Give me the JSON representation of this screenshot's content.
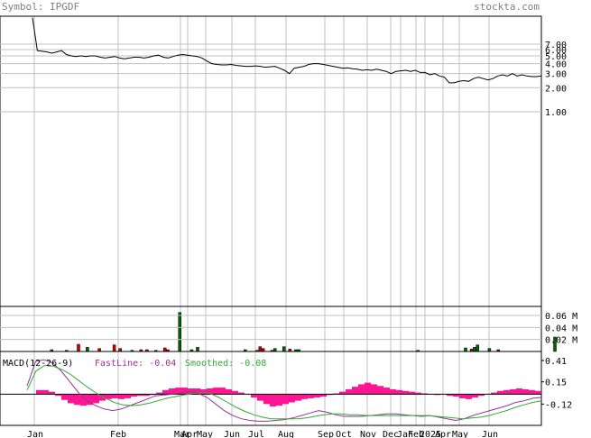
{
  "header": {
    "symbol_label": "Symbol: IPGDF",
    "site": "stockta.com"
  },
  "colors": {
    "frame": "#000000",
    "grid": "#c0c0c0",
    "price_line": "#000000",
    "vol_up": "#006400",
    "vol_down": "#cc0000",
    "macd_hist": "#ff1493",
    "fast_line": "#993399",
    "smoothed_line": "#33aa33",
    "label_gray": "#808080"
  },
  "x_axis": {
    "month_labels": [
      "Jan",
      "Feb",
      "Mar",
      "Apr",
      "May",
      "Jun",
      "Jul",
      "Aug",
      "Sep",
      "Oct",
      "Nov",
      "Dec",
      "Jan",
      "Feb",
      "2025",
      "Apr",
      "May",
      "Jun"
    ]
  },
  "chart_data": [
    {
      "type": "line",
      "title": "",
      "y_scale": "log",
      "y_tick_labels": [
        "7.00",
        "6.00",
        "5.00",
        "4.00",
        "3.00",
        "2.00",
        "1.00"
      ],
      "y_ticks": [
        7,
        6,
        5,
        4,
        3,
        2,
        1
      ],
      "ylim": [
        0,
        15
      ],
      "series": [
        {
          "values": [
            15,
            5.8,
            5.7,
            5.6,
            5.4,
            5.6,
            5.8,
            5.2,
            5.0,
            4.9,
            5.0,
            4.9,
            5.0,
            5.0,
            4.8,
            4.7,
            4.8,
            4.9,
            4.7,
            4.6,
            4.7,
            4.8,
            4.8,
            4.7,
            4.8,
            5.0,
            5.1,
            4.8,
            4.7,
            4.9,
            5.1,
            5.2,
            5.1,
            5.0,
            4.9,
            4.7,
            4.3,
            4.0,
            3.9,
            3.85,
            3.85,
            3.9,
            3.8,
            3.75,
            3.7,
            3.7,
            3.75,
            3.7,
            3.6,
            3.65,
            3.7,
            3.5,
            3.3,
            3.0,
            3.5,
            3.6,
            3.7,
            3.9,
            4.0,
            4.0,
            3.9,
            3.8,
            3.7,
            3.6,
            3.5,
            3.55,
            3.45,
            3.4,
            3.3,
            3.35,
            3.3,
            3.4,
            3.3,
            3.2,
            3.0,
            3.2,
            3.25,
            3.3,
            3.2,
            3.3,
            3.1,
            3.1,
            2.9,
            3.0,
            2.8,
            2.7,
            2.3,
            2.3,
            2.4,
            2.45,
            2.4,
            2.6,
            2.7,
            2.6,
            2.5,
            2.6,
            2.8,
            2.9,
            2.8,
            3.0,
            2.8,
            2.9,
            2.8,
            2.75,
            2.75,
            2.8
          ]
        }
      ]
    },
    {
      "type": "bar",
      "title": "",
      "unit": "M",
      "y_tick_labels": [
        "0.06 M",
        "0.04 M",
        "0.02 M"
      ],
      "y_ticks": [
        0.06,
        0.04,
        0.02
      ],
      "ylim": [
        0,
        0.075
      ],
      "bars": [
        {
          "x": 6,
          "value": 0.003,
          "dir": "up"
        },
        {
          "x": 11,
          "value": 0.002,
          "dir": "down"
        },
        {
          "x": 15,
          "value": 0.012,
          "dir": "down"
        },
        {
          "x": 18,
          "value": 0.007,
          "dir": "up"
        },
        {
          "x": 22,
          "value": 0.005,
          "dir": "down"
        },
        {
          "x": 27,
          "value": 0.011,
          "dir": "down"
        },
        {
          "x": 29,
          "value": 0.005,
          "dir": "down"
        },
        {
          "x": 33,
          "value": 0.002,
          "dir": "up"
        },
        {
          "x": 36,
          "value": 0.003,
          "dir": "down"
        },
        {
          "x": 38,
          "value": 0.003,
          "dir": "down"
        },
        {
          "x": 41,
          "value": 0.002,
          "dir": "up"
        },
        {
          "x": 44,
          "value": 0.006,
          "dir": "down"
        },
        {
          "x": 45,
          "value": 0.003,
          "dir": "down"
        },
        {
          "x": 49,
          "value": 0.065,
          "dir": "up"
        },
        {
          "x": 53,
          "value": 0.003,
          "dir": "up"
        },
        {
          "x": 55,
          "value": 0.007,
          "dir": "up"
        },
        {
          "x": 71,
          "value": 0.003,
          "dir": "up"
        },
        {
          "x": 75,
          "value": 0.002,
          "dir": "down"
        },
        {
          "x": 76,
          "value": 0.008,
          "dir": "down"
        },
        {
          "x": 77,
          "value": 0.005,
          "dir": "down"
        },
        {
          "x": 80,
          "value": 0.002,
          "dir": "up"
        },
        {
          "x": 81,
          "value": 0.005,
          "dir": "up"
        },
        {
          "x": 84,
          "value": 0.008,
          "dir": "up"
        },
        {
          "x": 86,
          "value": 0.004,
          "dir": "down"
        },
        {
          "x": 88,
          "value": 0.003,
          "dir": "up"
        },
        {
          "x": 89,
          "value": 0.003,
          "dir": "up"
        },
        {
          "x": 129,
          "value": 0.002,
          "dir": "up"
        },
        {
          "x": 145,
          "value": 0.006,
          "dir": "up"
        },
        {
          "x": 147,
          "value": 0.004,
          "dir": "down"
        },
        {
          "x": 148,
          "value": 0.007,
          "dir": "up"
        },
        {
          "x": 149,
          "value": 0.011,
          "dir": "up"
        },
        {
          "x": 153,
          "value": 0.005,
          "dir": "up"
        },
        {
          "x": 156,
          "value": 0.003,
          "dir": "down"
        },
        {
          "x": 175,
          "value": 0.024,
          "dir": "up"
        }
      ]
    },
    {
      "type": "line",
      "title": "MACD(12-26-9)",
      "fast_label": "FastLine: -0.04",
      "smoothed_label": "Smoothed: -0.08",
      "y_tick_labels": [
        "0.41",
        "0.15",
        "-0.12"
      ],
      "y_ticks": [
        0.41,
        0.15,
        -0.12
      ],
      "zero_line": 0,
      "ylim": [
        -0.38,
        0.52
      ],
      "histogram": [
        0.05,
        0.05,
        0.03,
        -0.02,
        -0.07,
        -0.11,
        -0.13,
        -0.14,
        -0.13,
        -0.11,
        -0.08,
        -0.06,
        -0.05,
        -0.06,
        -0.05,
        -0.03,
        -0.02,
        -0.02,
        -0.01,
        0.02,
        0.05,
        0.07,
        0.08,
        0.08,
        0.07,
        0.07,
        0.06,
        0.07,
        0.08,
        0.08,
        0.06,
        0.04,
        0.02,
        0.0,
        -0.04,
        -0.08,
        -0.12,
        -0.15,
        -0.14,
        -0.12,
        -0.1,
        -0.08,
        -0.06,
        -0.05,
        -0.04,
        -0.03,
        -0.01,
        0.01,
        0.03,
        0.06,
        0.09,
        0.12,
        0.14,
        0.12,
        0.1,
        0.08,
        0.06,
        0.05,
        0.04,
        0.03,
        0.02,
        0.01,
        0.0,
        -0.01,
        0.0,
        -0.02,
        -0.03,
        -0.05,
        -0.06,
        -0.04,
        -0.02,
        0.0,
        0.02,
        0.04,
        0.05,
        0.06,
        0.07,
        0.06,
        0.05,
        0.04
      ],
      "fast_line": [
        0.1,
        0.4,
        0.42,
        0.38,
        0.28,
        0.15,
        0.02,
        -0.08,
        -0.14,
        -0.18,
        -0.2,
        -0.18,
        -0.14,
        -0.1,
        -0.06,
        -0.02,
        -0.01,
        0.0,
        0.02,
        0.03,
        0.01,
        -0.04,
        -0.12,
        -0.2,
        -0.26,
        -0.3,
        -0.32,
        -0.33,
        -0.33,
        -0.32,
        -0.31,
        -0.29,
        -0.26,
        -0.23,
        -0.2,
        -0.22,
        -0.25,
        -0.27,
        -0.27,
        -0.27,
        -0.26,
        -0.25,
        -0.24,
        -0.24,
        -0.25,
        -0.26,
        -0.27,
        -0.26,
        -0.28,
        -0.3,
        -0.32,
        -0.3,
        -0.26,
        -0.23,
        -0.2,
        -0.17,
        -0.14,
        -0.1,
        -0.08,
        -0.05,
        -0.04
      ],
      "smoothed_line": [
        0.05,
        0.28,
        0.35,
        0.34,
        0.3,
        0.24,
        0.16,
        0.08,
        0.01,
        -0.05,
        -0.1,
        -0.13,
        -0.14,
        -0.13,
        -0.11,
        -0.08,
        -0.05,
        -0.03,
        -0.01,
        0.01,
        0.02,
        0.01,
        -0.04,
        -0.1,
        -0.16,
        -0.21,
        -0.25,
        -0.28,
        -0.3,
        -0.3,
        -0.3,
        -0.3,
        -0.29,
        -0.27,
        -0.25,
        -0.24,
        -0.24,
        -0.25,
        -0.25,
        -0.26,
        -0.26,
        -0.26,
        -0.26,
        -0.26,
        -0.26,
        -0.26,
        -0.26,
        -0.27,
        -0.28,
        -0.29,
        -0.3,
        -0.29,
        -0.28,
        -0.26,
        -0.23,
        -0.2,
        -0.16,
        -0.13,
        -0.1,
        -0.08
      ]
    }
  ]
}
